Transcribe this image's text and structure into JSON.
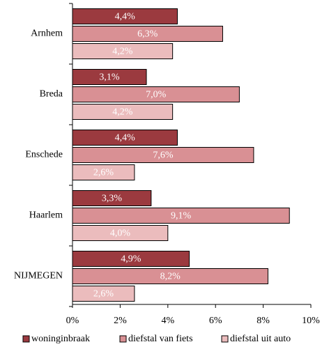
{
  "chart_data": {
    "type": "bar",
    "orientation": "horizontal",
    "categories": [
      "Arnhem",
      "Breda",
      "Enschede",
      "Haarlem",
      "NIJMEGEN"
    ],
    "series": [
      {
        "name": "woninginbraak",
        "color": "#9b3a3f",
        "values": [
          4.4,
          3.1,
          4.4,
          3.3,
          4.9
        ],
        "value_labels": [
          "4,4%",
          "3,1%",
          "4,4%",
          "3,3%",
          "4,9%"
        ]
      },
      {
        "name": "diefstal van fiets",
        "color": "#d99094",
        "values": [
          6.3,
          7.0,
          7.6,
          9.1,
          8.2
        ],
        "value_labels": [
          "6,3%",
          "7,0%",
          "7,6%",
          "9,1%",
          "8,2%"
        ]
      },
      {
        "name": "diefstal uit auto",
        "color": "#ebbcbd",
        "values": [
          4.2,
          4.2,
          2.6,
          4.0,
          2.6
        ],
        "value_labels": [
          "4,2%",
          "4,2%",
          "2,6%",
          "4,0%",
          "2,6%"
        ]
      }
    ],
    "xlim": [
      0,
      10
    ],
    "xticks": [
      {
        "value": 0,
        "label": "0%"
      },
      {
        "value": 2,
        "label": "2%"
      },
      {
        "value": 4,
        "label": "4%"
      },
      {
        "value": 6,
        "label": "6%"
      },
      {
        "value": 8,
        "label": "8%"
      },
      {
        "value": 10,
        "label": "10%"
      }
    ],
    "legend": "bottom"
  }
}
